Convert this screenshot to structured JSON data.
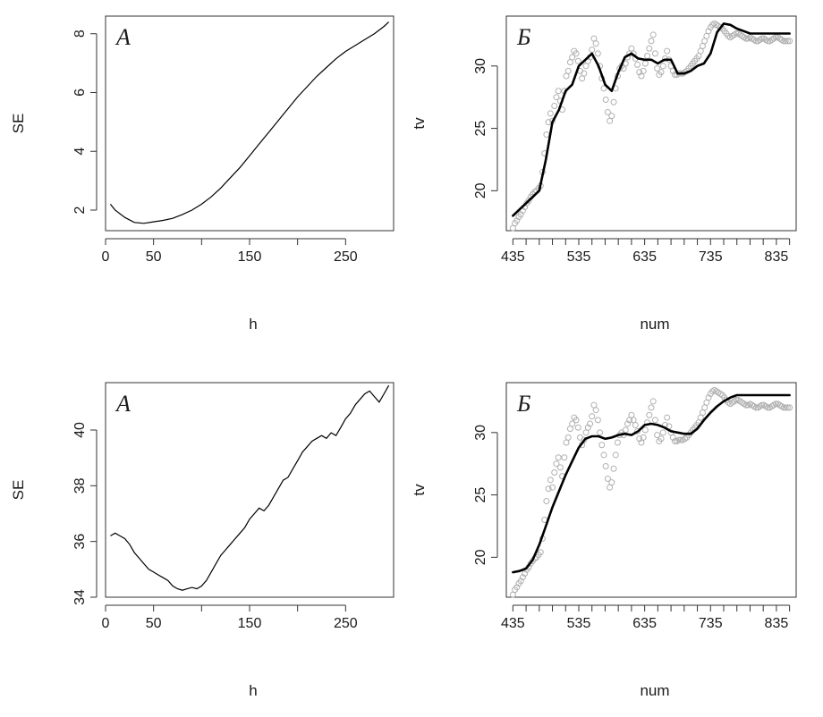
{
  "colors": {
    "curve": "#000000",
    "points": "#b0b0b0",
    "axis": "#333333",
    "background": "#ffffff"
  },
  "chart_data": [
    {
      "type": "line",
      "panel": "A",
      "panel_label": "А",
      "xlabel": "h",
      "ylabel": "SE",
      "xlim": [
        0,
        300
      ],
      "ylim": [
        1.3,
        8.6
      ],
      "xticks": [
        0,
        50,
        150,
        250
      ],
      "xticks_minor": [
        100,
        200
      ],
      "yticks": [
        2,
        4,
        6,
        8
      ],
      "series": [
        {
          "x": [
            5,
            10,
            20,
            30,
            40,
            50,
            60,
            70,
            80,
            90,
            100,
            110,
            120,
            130,
            140,
            150,
            160,
            170,
            180,
            190,
            200,
            210,
            220,
            230,
            240,
            250,
            260,
            270,
            280,
            290,
            295
          ],
          "y": [
            2.2,
            2.0,
            1.75,
            1.58,
            1.55,
            1.6,
            1.65,
            1.72,
            1.85,
            2.0,
            2.2,
            2.45,
            2.75,
            3.1,
            3.45,
            3.85,
            4.25,
            4.65,
            5.05,
            5.45,
            5.85,
            6.2,
            6.55,
            6.85,
            7.15,
            7.4,
            7.6,
            7.8,
            8.0,
            8.25,
            8.4
          ]
        }
      ]
    },
    {
      "type": "scatter",
      "panel": "B",
      "panel_label": "Б",
      "xlabel": "num",
      "ylabel": "tv",
      "xlim": [
        425,
        865
      ],
      "ylim": [
        16.8,
        34
      ],
      "xticks": [
        435,
        535,
        635,
        735,
        835
      ],
      "xticks_minor": [
        455,
        475,
        495,
        515,
        555,
        575,
        595,
        615,
        655,
        675,
        695,
        715,
        755,
        775,
        795,
        815,
        855
      ],
      "yticks": [
        20,
        25,
        30
      ],
      "smooth": {
        "x": [
          435,
          445,
          455,
          465,
          475,
          485,
          495,
          505,
          515,
          525,
          535,
          545,
          555,
          565,
          575,
          585,
          595,
          605,
          615,
          625,
          635,
          645,
          655,
          665,
          675,
          685,
          695,
          705,
          715,
          725,
          735,
          745,
          755,
          765,
          775,
          785,
          795,
          805,
          815,
          825,
          835,
          845,
          855
        ],
        "y": [
          18.0,
          18.5,
          19.0,
          19.5,
          20.0,
          22.5,
          25.5,
          26.5,
          28.0,
          28.5,
          30.0,
          30.5,
          31.0,
          30.0,
          28.5,
          28.0,
          29.5,
          30.7,
          31.0,
          30.6,
          30.5,
          30.5,
          30.2,
          30.5,
          30.5,
          29.4,
          29.4,
          29.6,
          30.0,
          30.2,
          31.0,
          32.7,
          33.4,
          33.3,
          33.0,
          32.8,
          32.6,
          32.6,
          32.6,
          32.6,
          32.6,
          32.6,
          32.6
        ]
      },
      "points": {
        "x": [
          435,
          438,
          441,
          444,
          447,
          450,
          453,
          456,
          459,
          462,
          465,
          468,
          471,
          474,
          477,
          480,
          483,
          486,
          489,
          492,
          495,
          498,
          501,
          504,
          507,
          510,
          513,
          516,
          519,
          522,
          525,
          528,
          531,
          534,
          537,
          540,
          543,
          546,
          549,
          552,
          555,
          558,
          561,
          564,
          567,
          570,
          573,
          576,
          579,
          582,
          585,
          588,
          591,
          594,
          597,
          600,
          603,
          606,
          609,
          612,
          615,
          618,
          621,
          624,
          627,
          630,
          633,
          636,
          639,
          642,
          645,
          648,
          651,
          654,
          657,
          660,
          663,
          666,
          669,
          672,
          675,
          678,
          681,
          684,
          687,
          690,
          693,
          696,
          699,
          702,
          705,
          708,
          711,
          714,
          717,
          720,
          723,
          726,
          729,
          732,
          735,
          738,
          741,
          744,
          747,
          750,
          753,
          756,
          759,
          762,
          765,
          768,
          771,
          774,
          777,
          780,
          783,
          786,
          789,
          792,
          795,
          798,
          801,
          804,
          807,
          810,
          813,
          816,
          819,
          822,
          825,
          828,
          831,
          834,
          837,
          840,
          843,
          846,
          849,
          852,
          855
        ],
        "y": [
          17.0,
          17.4,
          17.6,
          17.9,
          18.1,
          18.4,
          18.7,
          19.0,
          19.2,
          19.5,
          19.7,
          19.9,
          20.0,
          20.2,
          20.4,
          21.5,
          23.0,
          24.5,
          25.5,
          26.2,
          25.6,
          26.8,
          27.5,
          28.0,
          27.2,
          26.5,
          28.0,
          29.2,
          29.6,
          30.3,
          30.7,
          31.2,
          31.0,
          30.4,
          29.6,
          29.0,
          29.4,
          30.0,
          30.4,
          30.7,
          31.3,
          32.2,
          31.8,
          31.0,
          30.0,
          29.0,
          28.2,
          27.3,
          26.3,
          25.6,
          26.0,
          27.1,
          28.2,
          29.2,
          29.8,
          30.0,
          29.8,
          30.2,
          30.7,
          31.0,
          31.4,
          31.0,
          30.6,
          30.1,
          29.5,
          29.2,
          29.6,
          30.2,
          30.8,
          31.4,
          32.0,
          32.5,
          31.0,
          29.8,
          29.3,
          29.5,
          30.0,
          30.6,
          31.2,
          30.5,
          30.0,
          29.6,
          29.3,
          29.3,
          29.4,
          29.4,
          29.4,
          29.5,
          29.6,
          29.8,
          30.0,
          30.2,
          30.4,
          30.6,
          30.8,
          31.2,
          31.6,
          32.0,
          32.4,
          32.8,
          33.1,
          33.3,
          33.4,
          33.3,
          33.2,
          33.1,
          33.0,
          32.8,
          32.6,
          32.4,
          32.3,
          32.4,
          32.5,
          32.6,
          32.6,
          32.5,
          32.4,
          32.3,
          32.2,
          32.2,
          32.3,
          32.2,
          32.1,
          32.0,
          32.0,
          32.1,
          32.2,
          32.2,
          32.1,
          32.0,
          32.0,
          32.1,
          32.2,
          32.3,
          32.3,
          32.2,
          32.1,
          32.0,
          32.0,
          32.0,
          32.0
        ]
      }
    },
    {
      "type": "line",
      "panel": "C",
      "panel_label": "А",
      "xlabel": "h",
      "ylabel": "SE",
      "xlim": [
        0,
        300
      ],
      "ylim": [
        34.0,
        41.7
      ],
      "xticks": [
        0,
        50,
        150,
        250
      ],
      "xticks_minor": [
        100,
        200
      ],
      "yticks": [
        34,
        36,
        38,
        40
      ],
      "series": [
        {
          "x": [
            5,
            10,
            15,
            20,
            25,
            30,
            35,
            40,
            45,
            50,
            55,
            60,
            65,
            70,
            75,
            80,
            85,
            90,
            95,
            100,
            105,
            110,
            115,
            120,
            125,
            130,
            135,
            140,
            145,
            150,
            155,
            160,
            165,
            170,
            175,
            180,
            185,
            190,
            195,
            200,
            205,
            210,
            215,
            220,
            225,
            230,
            235,
            240,
            245,
            250,
            255,
            260,
            265,
            270,
            275,
            280,
            285,
            290,
            295
          ],
          "y": [
            36.2,
            36.3,
            36.2,
            36.1,
            35.9,
            35.6,
            35.4,
            35.2,
            35.0,
            34.9,
            34.8,
            34.7,
            34.6,
            34.4,
            34.3,
            34.25,
            34.3,
            34.35,
            34.3,
            34.4,
            34.6,
            34.9,
            35.2,
            35.5,
            35.7,
            35.9,
            36.1,
            36.3,
            36.5,
            36.8,
            37.0,
            37.2,
            37.1,
            37.3,
            37.6,
            37.9,
            38.2,
            38.3,
            38.6,
            38.9,
            39.2,
            39.4,
            39.6,
            39.7,
            39.8,
            39.7,
            39.9,
            39.8,
            40.1,
            40.4,
            40.6,
            40.9,
            41.1,
            41.3,
            41.4,
            41.2,
            41.0,
            41.3,
            41.6
          ]
        }
      ]
    },
    {
      "type": "scatter",
      "panel": "D",
      "panel_label": "Б",
      "xlabel": "num",
      "ylabel": "tv",
      "xlim": [
        425,
        865
      ],
      "ylim": [
        16.8,
        34
      ],
      "xticks": [
        435,
        535,
        635,
        735,
        835
      ],
      "xticks_minor": [
        455,
        475,
        495,
        515,
        555,
        575,
        595,
        615,
        655,
        675,
        695,
        715,
        755,
        775,
        795,
        815,
        855
      ],
      "yticks": [
        20,
        25,
        30
      ],
      "smooth": {
        "x": [
          435,
          445,
          455,
          465,
          475,
          485,
          495,
          505,
          515,
          525,
          535,
          545,
          555,
          565,
          575,
          585,
          595,
          605,
          615,
          625,
          635,
          645,
          655,
          665,
          675,
          685,
          695,
          705,
          715,
          725,
          735,
          745,
          755,
          765,
          775,
          785,
          795,
          805,
          815,
          825,
          835,
          845,
          855
        ],
        "y": [
          18.8,
          18.9,
          19.1,
          19.8,
          21.0,
          22.5,
          24.0,
          25.3,
          26.6,
          27.7,
          28.8,
          29.5,
          29.7,
          29.7,
          29.5,
          29.6,
          29.8,
          29.9,
          29.8,
          30.1,
          30.6,
          30.7,
          30.6,
          30.4,
          30.1,
          30.0,
          29.9,
          29.9,
          30.3,
          31.0,
          31.6,
          32.1,
          32.5,
          32.8,
          33.0,
          33.0,
          33.0,
          33.0,
          33.0,
          33.0,
          33.0,
          33.0,
          33.0
        ]
      },
      "points": {
        "x": [
          435,
          438,
          441,
          444,
          447,
          450,
          453,
          456,
          459,
          462,
          465,
          468,
          471,
          474,
          477,
          480,
          483,
          486,
          489,
          492,
          495,
          498,
          501,
          504,
          507,
          510,
          513,
          516,
          519,
          522,
          525,
          528,
          531,
          534,
          537,
          540,
          543,
          546,
          549,
          552,
          555,
          558,
          561,
          564,
          567,
          570,
          573,
          576,
          579,
          582,
          585,
          588,
          591,
          594,
          597,
          600,
          603,
          606,
          609,
          612,
          615,
          618,
          621,
          624,
          627,
          630,
          633,
          636,
          639,
          642,
          645,
          648,
          651,
          654,
          657,
          660,
          663,
          666,
          669,
          672,
          675,
          678,
          681,
          684,
          687,
          690,
          693,
          696,
          699,
          702,
          705,
          708,
          711,
          714,
          717,
          720,
          723,
          726,
          729,
          732,
          735,
          738,
          741,
          744,
          747,
          750,
          753,
          756,
          759,
          762,
          765,
          768,
          771,
          774,
          777,
          780,
          783,
          786,
          789,
          792,
          795,
          798,
          801,
          804,
          807,
          810,
          813,
          816,
          819,
          822,
          825,
          828,
          831,
          834,
          837,
          840,
          843,
          846,
          849,
          852,
          855
        ],
        "y": [
          17.0,
          17.4,
          17.6,
          17.9,
          18.1,
          18.4,
          18.7,
          19.0,
          19.2,
          19.5,
          19.7,
          19.9,
          20.0,
          20.2,
          20.4,
          21.5,
          23.0,
          24.5,
          25.5,
          26.2,
          25.6,
          26.8,
          27.5,
          28.0,
          27.2,
          26.5,
          28.0,
          29.2,
          29.6,
          30.3,
          30.7,
          31.2,
          31.0,
          30.4,
          29.6,
          29.0,
          29.4,
          30.0,
          30.4,
          30.7,
          31.3,
          32.2,
          31.8,
          31.0,
          30.0,
          29.0,
          28.2,
          27.3,
          26.3,
          25.6,
          26.0,
          27.1,
          28.2,
          29.2,
          29.8,
          30.0,
          29.8,
          30.2,
          30.7,
          31.0,
          31.4,
          31.0,
          30.6,
          30.1,
          29.5,
          29.2,
          29.6,
          30.2,
          30.8,
          31.4,
          32.0,
          32.5,
          31.0,
          29.8,
          29.3,
          29.5,
          30.0,
          30.6,
          31.2,
          30.5,
          30.0,
          29.6,
          29.3,
          29.3,
          29.4,
          29.4,
          29.4,
          29.5,
          29.6,
          29.8,
          30.0,
          30.2,
          30.4,
          30.6,
          30.8,
          31.2,
          31.6,
          32.0,
          32.4,
          32.8,
          33.1,
          33.3,
          33.4,
          33.3,
          33.2,
          33.1,
          33.0,
          32.8,
          32.6,
          32.4,
          32.3,
          32.4,
          32.5,
          32.6,
          32.6,
          32.5,
          32.4,
          32.3,
          32.2,
          32.2,
          32.3,
          32.2,
          32.1,
          32.0,
          32.0,
          32.1,
          32.2,
          32.2,
          32.1,
          32.0,
          32.0,
          32.1,
          32.2,
          32.3,
          32.3,
          32.2,
          32.1,
          32.0,
          32.0,
          32.0,
          32.0
        ]
      }
    }
  ]
}
